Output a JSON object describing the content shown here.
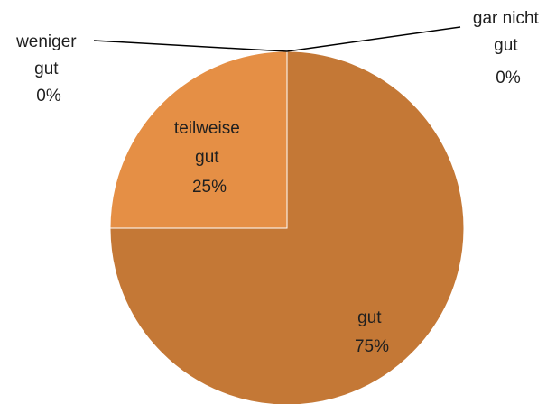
{
  "chart_data": {
    "type": "pie",
    "slices": [
      {
        "label": "gut",
        "value": 75,
        "percent_label": "75%",
        "color": "#C47836"
      },
      {
        "label": "teilweise gut",
        "value": 25,
        "percent_label": "25%",
        "color": "#E58F45"
      },
      {
        "label": "weniger gut",
        "value": 0,
        "percent_label": "0%",
        "color": "#E58F45"
      },
      {
        "label": "gar nicht gut",
        "value": 0,
        "percent_label": "0%",
        "color": "#C47836"
      }
    ],
    "labels": {
      "gut": [
        "gut",
        "75%"
      ],
      "teilweise": [
        "teilweise",
        "gut",
        "25%"
      ],
      "weniger": [
        "weniger",
        "gut",
        "0%"
      ],
      "garnicht": [
        "gar nicht",
        "gut",
        "0%"
      ]
    },
    "title": ""
  }
}
